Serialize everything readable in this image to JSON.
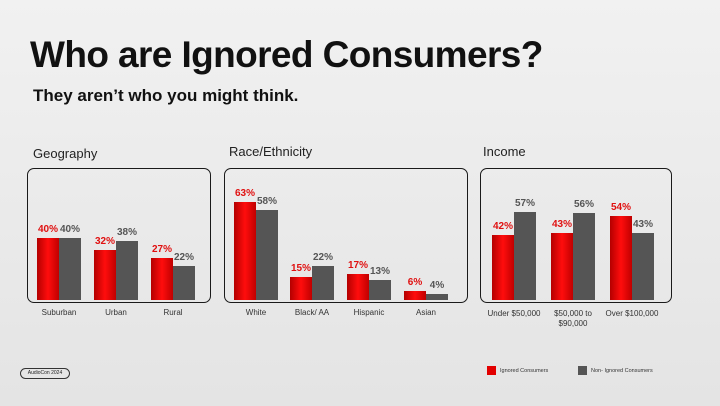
{
  "slide": {
    "title": "Who are Ignored Consumers?",
    "subtitle": "They aren’t who you might think.",
    "badge": "AudioCon 2024",
    "colors": {
      "ignored": "#e20000",
      "non_ignored": "#555555"
    }
  },
  "legend": [
    {
      "label": "Ignored Consumers",
      "color": "#e20000"
    },
    {
      "label": "Non- Ignored Consumers",
      "color": "#555555"
    }
  ],
  "chart_data": [
    {
      "type": "bar",
      "title": "Geography",
      "categories": [
        "Suburban",
        "Urban",
        "Rural"
      ],
      "series": [
        {
          "name": "Ignored Consumers",
          "values": [
            40,
            32,
            27
          ]
        },
        {
          "name": "Non- Ignored Consumers",
          "values": [
            40,
            38,
            22
          ]
        }
      ],
      "ylim": [
        0,
        70
      ],
      "value_suffix": "%"
    },
    {
      "type": "bar",
      "title": "Race/Ethnicity",
      "categories": [
        "White",
        "Black/ AA",
        "Hispanic",
        "Asian"
      ],
      "series": [
        {
          "name": "Ignored Consumers",
          "values": [
            63,
            15,
            17,
            6
          ]
        },
        {
          "name": "Non- Ignored Consumers",
          "values": [
            58,
            22,
            13,
            4
          ]
        }
      ],
      "ylim": [
        0,
        70
      ],
      "value_suffix": "%"
    },
    {
      "type": "bar",
      "title": "Income",
      "categories": [
        "Under $50,000",
        "$50,000 to $90,000",
        "Over $100,000"
      ],
      "series": [
        {
          "name": "Ignored Consumers",
          "values": [
            42,
            43,
            54
          ]
        },
        {
          "name": "Non- Ignored Consumers",
          "values": [
            57,
            56,
            43
          ]
        }
      ],
      "ylim": [
        0,
        70
      ],
      "value_suffix": "%"
    }
  ]
}
